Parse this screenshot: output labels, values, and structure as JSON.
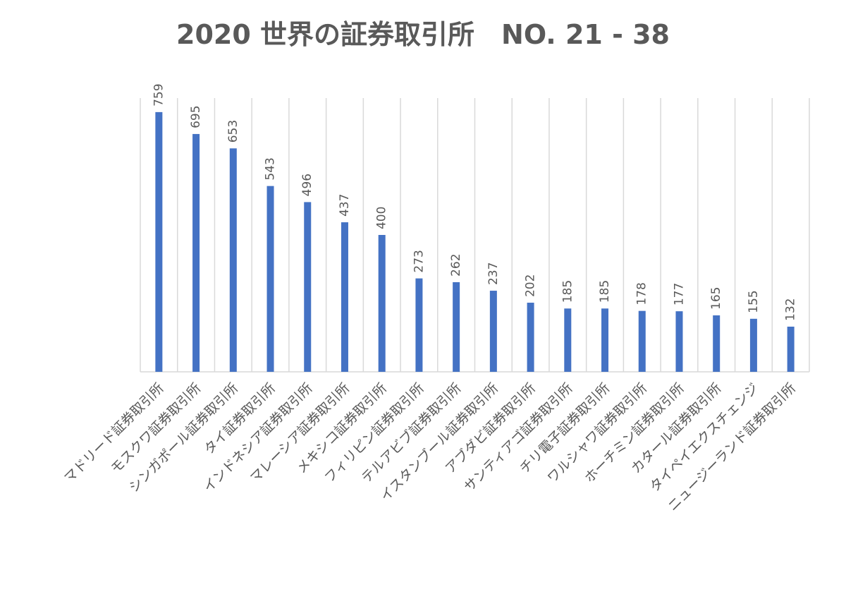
{
  "chart_data": {
    "type": "bar",
    "title": "2020 世界の証券取引所　NO. 21 - 38",
    "categories": [
      "マドリード証券取引所",
      "モスクワ証券取引所",
      "シンガポール証券取引所",
      "タイ証券取引所",
      "インドネシア証券取引所",
      "マレーシア証券取引所",
      "メキシコ証券取引所",
      "フィリピン証券取引所",
      "テルアビブ証券取引所",
      "イスタンブール証券取引所",
      "アブダビ証券取引所",
      "サンティアゴ証券取引所",
      "チリ電子証券取引所",
      "ワルシャワ証券取引所",
      "ホーチミン証券取引所",
      "カタール証券取引所",
      "タイペイエクスチェンジ",
      "ニュージーランド証券取引所"
    ],
    "values": [
      759,
      695,
      653,
      543,
      496,
      437,
      400,
      273,
      262,
      237,
      202,
      185,
      185,
      178,
      177,
      165,
      155,
      132
    ],
    "color": "#4472c4",
    "ylim": [
      0,
      800
    ]
  }
}
